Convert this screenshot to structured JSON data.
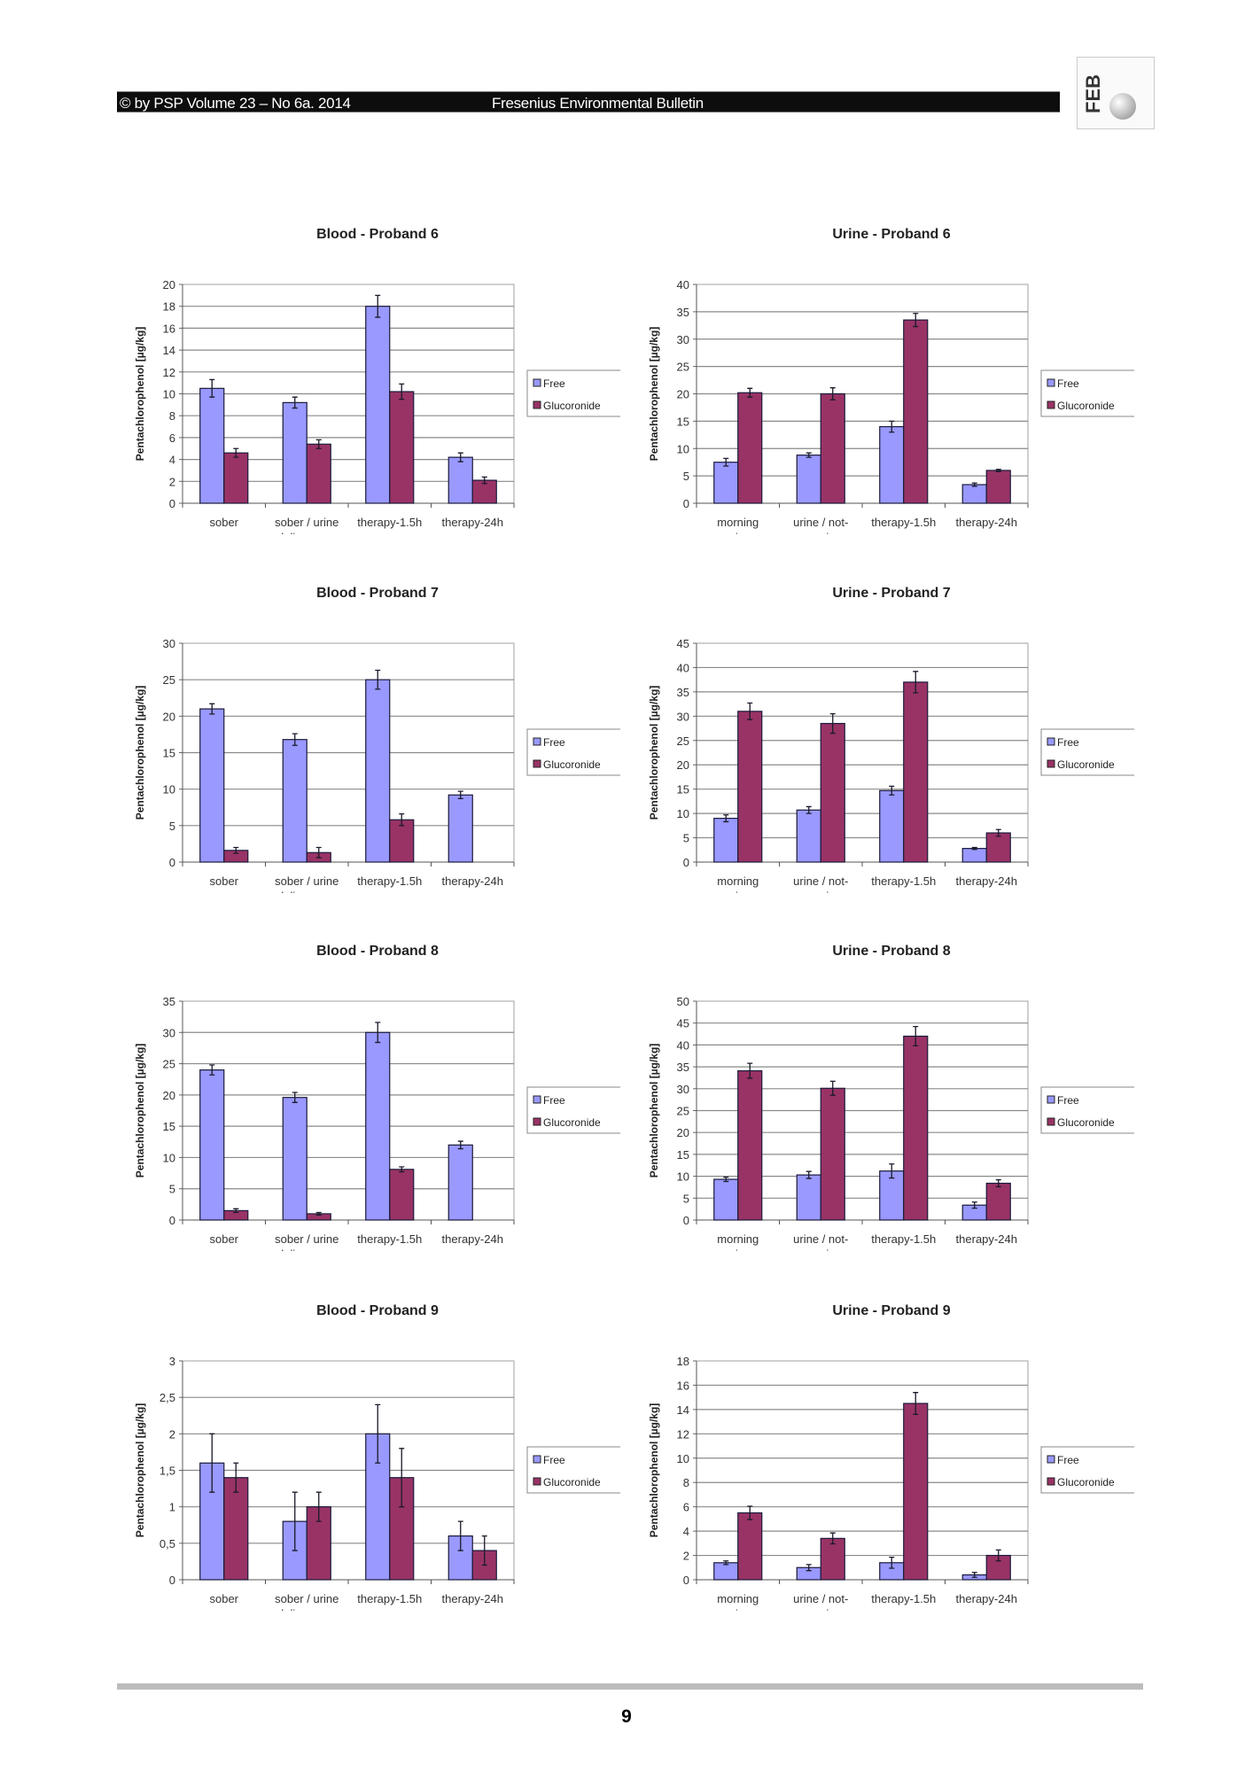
{
  "header": {
    "left_text": "© by PSP Volume 23 – No 6a. 2014",
    "center_text": "Fresenius Environmental Bulletin",
    "logo_text": "FEB"
  },
  "footer": {
    "page_number": "9"
  },
  "colors": {
    "free": "#9999ff",
    "glucoronide": "#993366",
    "grid": "#808080"
  },
  "chart_data": [
    {
      "type": "bar",
      "title": "Blood - Proband 6",
      "ylabel": "Pentachlorophenol [µg/kg]",
      "ylim": [
        0,
        20
      ],
      "ystep": 2,
      "categories": [
        [
          "sober"
        ],
        [
          "sober / urine",
          "deliverance"
        ],
        [
          "therapy-1.5h"
        ],
        [
          "therapy-24h"
        ]
      ],
      "series": [
        {
          "name": "Free",
          "values": [
            10.5,
            9.2,
            18,
            4.2
          ],
          "errors": [
            0.8,
            0.5,
            1,
            0.4
          ]
        },
        {
          "name": "Glucoronide",
          "values": [
            4.6,
            5.4,
            10.2,
            2.1
          ],
          "errors": [
            0.4,
            0.4,
            0.7,
            0.3
          ]
        }
      ],
      "legend": "right"
    },
    {
      "type": "bar",
      "title": "Urine - Proband 6",
      "ylabel": "Pentachlorophenol [µg/kg]",
      "ylim": [
        0,
        40
      ],
      "ystep": 5,
      "categories": [
        [
          "morning",
          "urine"
        ],
        [
          "urine / not-",
          "morning"
        ],
        [
          "therapy-1.5h"
        ],
        [
          "therapy-24h"
        ]
      ],
      "series": [
        {
          "name": "Free",
          "values": [
            7.5,
            8.8,
            14,
            3.4
          ],
          "errors": [
            0.7,
            0.4,
            1,
            0.3
          ]
        },
        {
          "name": "Glucoronide",
          "values": [
            20.2,
            20,
            33.5,
            6
          ],
          "errors": [
            0.8,
            1.1,
            1.2,
            0.2
          ]
        }
      ],
      "legend": "right"
    },
    {
      "type": "bar",
      "title": "Blood - Proband 7",
      "ylabel": "Pentachlorophenol [µg/kg]",
      "ylim": [
        0,
        30
      ],
      "ystep": 5,
      "categories": [
        [
          "sober"
        ],
        [
          "sober / urine",
          "deliverance"
        ],
        [
          "therapy-1.5h"
        ],
        [
          "therapy-24h"
        ]
      ],
      "series": [
        {
          "name": "Free",
          "values": [
            21,
            16.8,
            25,
            9.2
          ],
          "errors": [
            0.7,
            0.8,
            1.3,
            0.5
          ]
        },
        {
          "name": "Glucoronide",
          "values": [
            1.6,
            1.3,
            5.8,
            null
          ],
          "errors": [
            0.4,
            0.7,
            0.8,
            null
          ]
        }
      ],
      "legend": "right"
    },
    {
      "type": "bar",
      "title": "Urine - Proband 7",
      "ylabel": "Pentachlorophenol [µg/kg]",
      "ylim": [
        0,
        45
      ],
      "ystep": 5,
      "categories": [
        [
          "morning",
          "urine"
        ],
        [
          "urine / not-",
          "morning"
        ],
        [
          "therapy-1.5h"
        ],
        [
          "therapy-24h"
        ]
      ],
      "series": [
        {
          "name": "Free",
          "values": [
            9,
            10.7,
            14.7,
            2.8
          ],
          "errors": [
            0.7,
            0.7,
            0.9,
            0.2
          ]
        },
        {
          "name": "Glucoronide",
          "values": [
            31,
            28.5,
            37,
            6
          ],
          "errors": [
            1.7,
            2,
            2.2,
            0.7
          ]
        }
      ],
      "legend": "right"
    },
    {
      "type": "bar",
      "title": "Blood - Proband 8",
      "ylabel": "Pentachlorophenol [µg/kg]",
      "ylim": [
        0,
        35
      ],
      "ystep": 5,
      "categories": [
        [
          "sober"
        ],
        [
          "sober / urine",
          "deliverance"
        ],
        [
          "therapy-1.5h"
        ],
        [
          "therapy-24h"
        ]
      ],
      "series": [
        {
          "name": "Free",
          "values": [
            24,
            19.6,
            30,
            12
          ],
          "errors": [
            0.8,
            0.8,
            1.6,
            0.6
          ]
        },
        {
          "name": "Glucoronide",
          "values": [
            1.5,
            1,
            8.1,
            null
          ],
          "errors": [
            0.3,
            0.2,
            0.4,
            null
          ]
        }
      ],
      "legend": "right"
    },
    {
      "type": "bar",
      "title": "Urine - Proband 8",
      "ylabel": "Pentachlorophenol [µg/kg]",
      "ylim": [
        0,
        50
      ],
      "ystep": 5,
      "categories": [
        [
          "morning",
          "urine"
        ],
        [
          "urine / not-",
          "morning"
        ],
        [
          "therapy-1.5h"
        ],
        [
          "therapy-24h"
        ]
      ],
      "series": [
        {
          "name": "Free",
          "values": [
            9.3,
            10.3,
            11.2,
            3.4
          ],
          "errors": [
            0.5,
            0.8,
            1.6,
            0.7
          ]
        },
        {
          "name": "Glucoronide",
          "values": [
            34.1,
            30.1,
            42,
            8.4
          ],
          "errors": [
            1.7,
            1.6,
            2.2,
            0.8
          ]
        }
      ],
      "legend": "right"
    },
    {
      "type": "bar",
      "title": "Blood - Proband 9",
      "ylabel": "Pentachlorophenol [µg/kg]",
      "ylim": [
        0,
        3
      ],
      "ystep": 0.5,
      "decimal_comma": true,
      "categories": [
        [
          "sober"
        ],
        [
          "sober / urine",
          "deliverance"
        ],
        [
          "therapy-1.5h"
        ],
        [
          "therapy-24h"
        ]
      ],
      "series": [
        {
          "name": "Free",
          "values": [
            1.6,
            0.8,
            2,
            0.6
          ],
          "errors": [
            0.4,
            0.4,
            0.4,
            0.2
          ]
        },
        {
          "name": "Glucoronide",
          "values": [
            1.4,
            1,
            1.4,
            0.4
          ],
          "errors": [
            0.2,
            0.2,
            0.4,
            0.2
          ]
        }
      ],
      "legend": "right"
    },
    {
      "type": "bar",
      "title": "Urine - Proband 9",
      "ylabel": "Pentachlorophenol [µg/kg]",
      "ylim": [
        0,
        18
      ],
      "ystep": 2,
      "categories": [
        [
          "morning",
          "urine"
        ],
        [
          "urine / not-",
          "morning"
        ],
        [
          "therapy-1.5h"
        ],
        [
          "therapy-24h"
        ]
      ],
      "series": [
        {
          "name": "Free",
          "values": [
            1.4,
            1,
            1.4,
            0.4
          ],
          "errors": [
            0.15,
            0.25,
            0.45,
            0.2
          ]
        },
        {
          "name": "Glucoronide",
          "values": [
            5.5,
            3.4,
            14.5,
            2
          ],
          "errors": [
            0.55,
            0.45,
            0.9,
            0.45
          ]
        }
      ],
      "legend": "right"
    }
  ]
}
